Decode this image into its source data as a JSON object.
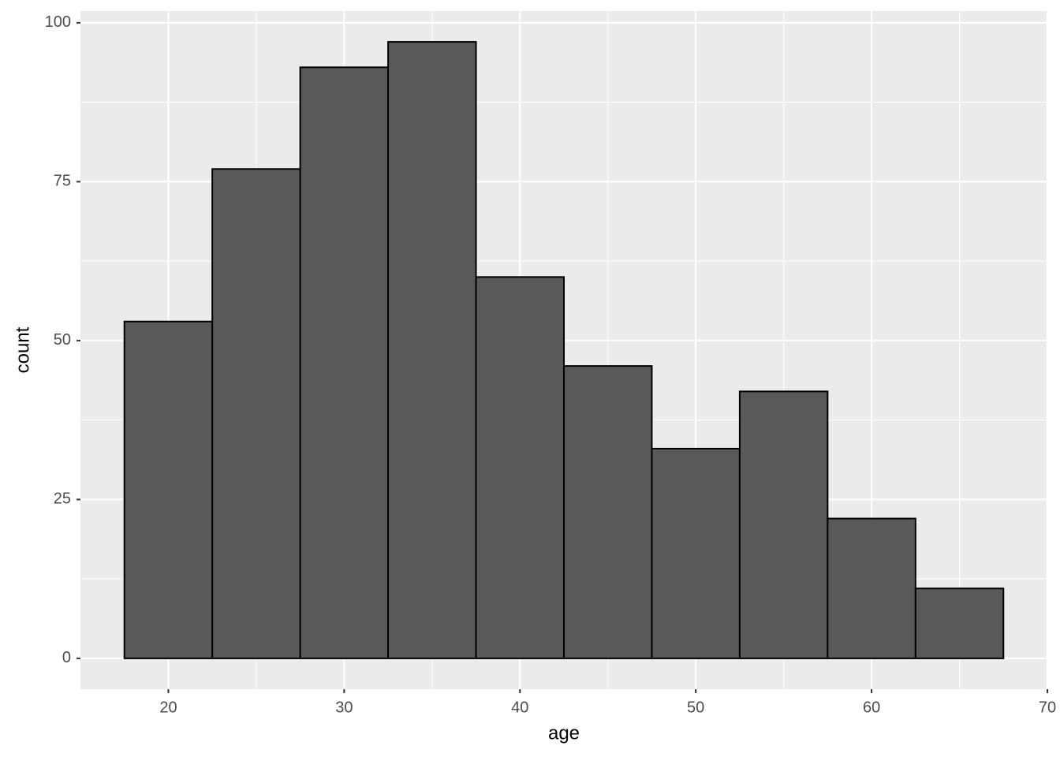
{
  "chart_data": {
    "type": "histogram",
    "x_label": "age",
    "y_label": "count",
    "bins": [
      17.5,
      22.5,
      27.5,
      32.5,
      37.5,
      42.5,
      47.5,
      52.5,
      57.5,
      62.5,
      67.5
    ],
    "values": [
      53,
      77,
      93,
      97,
      60,
      46,
      33,
      42,
      22,
      11
    ],
    "color": "#595959",
    "edge_color": "#000000",
    "xlim": [
      15,
      70
    ],
    "xticks": [
      20,
      30,
      40,
      50,
      60,
      70
    ],
    "x_minor_grid": [
      25,
      35,
      45,
      55,
      65
    ],
    "ylim": [
      -4.85,
      101.85
    ],
    "yticks": [
      0,
      25,
      50,
      75,
      100
    ],
    "y_minor_grid": [
      12.5,
      37.5,
      62.5,
      87.5
    ],
    "grid": true
  }
}
